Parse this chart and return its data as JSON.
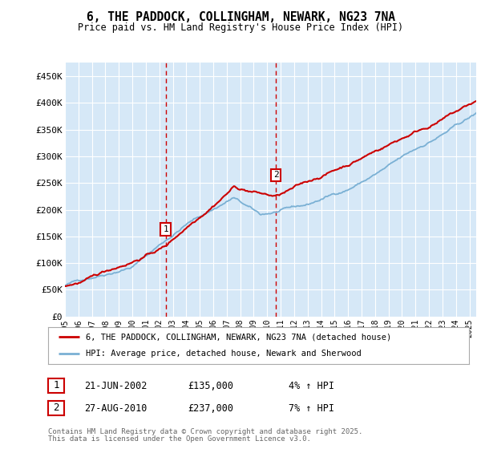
{
  "title": "6, THE PADDOCK, COLLINGHAM, NEWARK, NG23 7NA",
  "subtitle": "Price paid vs. HM Land Registry's House Price Index (HPI)",
  "hpi_label": "HPI: Average price, detached house, Newark and Sherwood",
  "property_label": "6, THE PADDOCK, COLLINGHAM, NEWARK, NG23 7NA (detached house)",
  "footnote_line1": "Contains HM Land Registry data © Crown copyright and database right 2025.",
  "footnote_line2": "This data is licensed under the Open Government Licence v3.0.",
  "transaction1_date": "21-JUN-2002",
  "transaction1_price": 135000,
  "transaction1_pct": "4% ↑ HPI",
  "transaction2_date": "27-AUG-2010",
  "transaction2_price": 237000,
  "transaction2_pct": "7% ↑ HPI",
  "ylim": [
    0,
    475000
  ],
  "yticks": [
    0,
    50000,
    100000,
    150000,
    200000,
    250000,
    300000,
    350000,
    400000,
    450000
  ],
  "ylabels": [
    "£0",
    "£50K",
    "£100K",
    "£150K",
    "£200K",
    "£250K",
    "£300K",
    "£350K",
    "£400K",
    "£450K"
  ],
  "plot_bg_color": "#d6e8f7",
  "grid_color": "#ffffff",
  "hpi_color": "#7ab0d4",
  "property_color": "#cc0000",
  "vline_color": "#cc0000",
  "transaction1_x": 2002.47,
  "transaction2_x": 2010.65,
  "xmin": 1995,
  "xmax": 2025.5
}
